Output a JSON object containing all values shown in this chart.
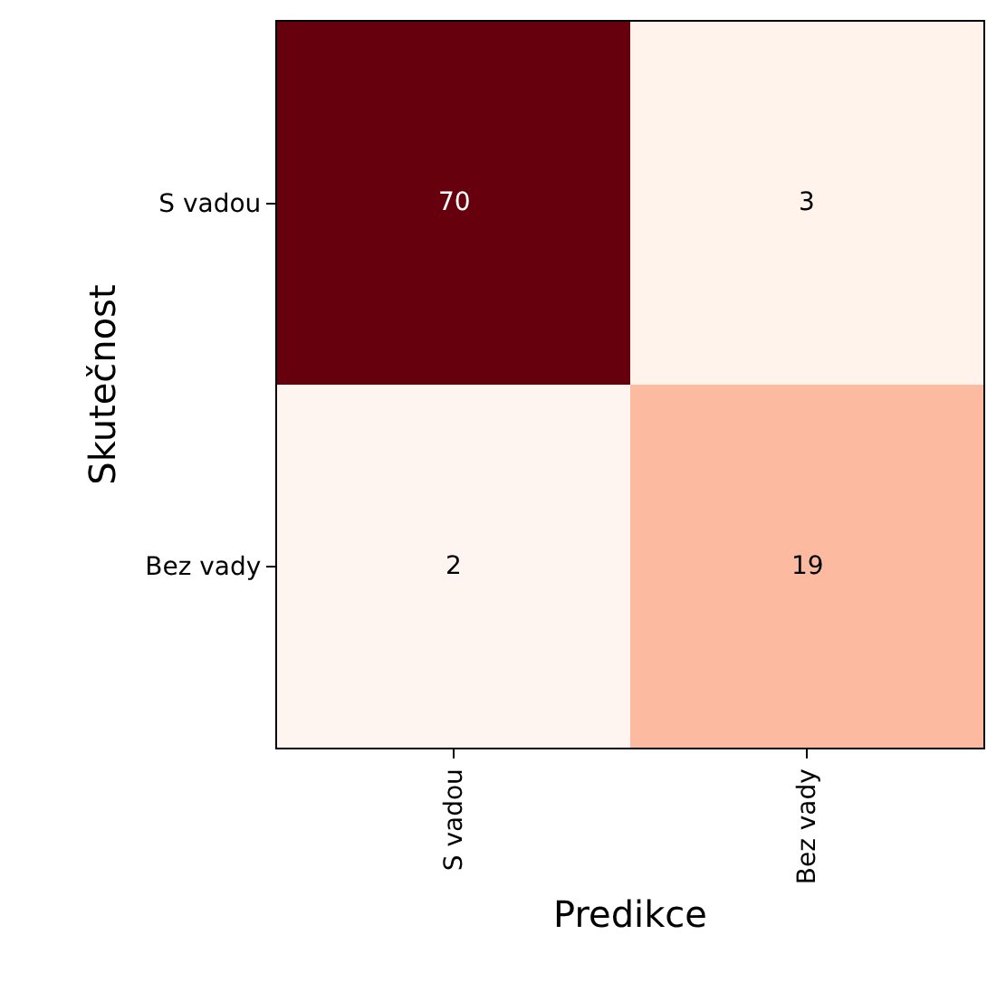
{
  "chart_data": {
    "type": "heatmap",
    "xlabel": "Predikce",
    "ylabel": "Skutečnost",
    "categories": [
      "S vadou",
      "Bez vady"
    ],
    "y_categories": [
      "S vadou",
      "Bez vady"
    ],
    "cells": [
      [
        70,
        3
      ],
      [
        2,
        19
      ]
    ],
    "data_labels": true
  }
}
